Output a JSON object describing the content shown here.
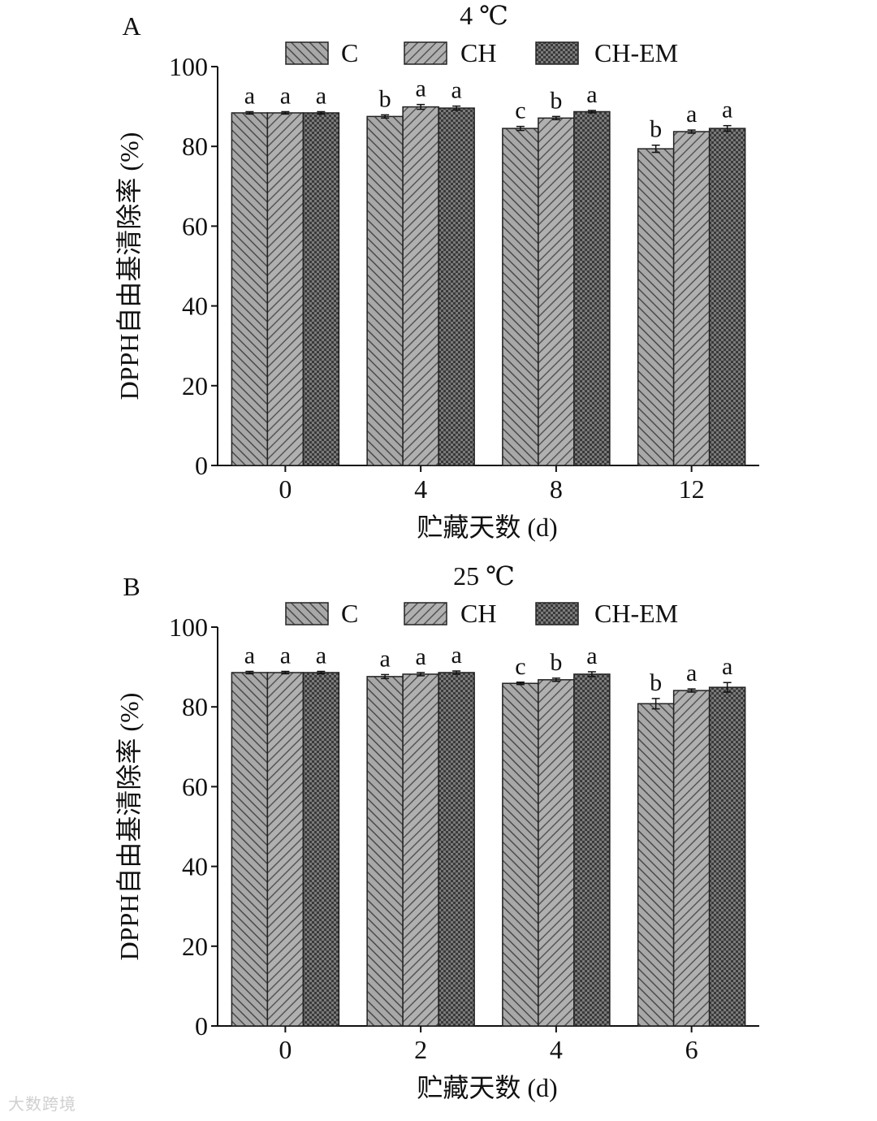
{
  "chart_data": [
    {
      "type": "bar",
      "panel_letter": "A",
      "title": "4 ℃",
      "xlabel": "贮藏天数 (d)",
      "ylabel": "DPPH自由基清除率 (%)",
      "ylim": [
        0,
        100
      ],
      "yticks": [
        "0",
        "20",
        "40",
        "60",
        "80",
        "100"
      ],
      "categories": [
        "0",
        "4",
        "8",
        "12"
      ],
      "legend": [
        "C",
        "CH",
        "CH-EM"
      ],
      "series": [
        {
          "name": "C",
          "values": [
            88.4,
            87.5,
            84.5,
            79.4
          ],
          "errors": [
            0.3,
            0.4,
            0.5,
            0.9
          ],
          "letters": [
            "a",
            "b",
            "c",
            "b"
          ]
        },
        {
          "name": "CH",
          "values": [
            88.4,
            89.9,
            87.1,
            83.7
          ],
          "errors": [
            0.3,
            0.6,
            0.4,
            0.4
          ],
          "letters": [
            "a",
            "a",
            "b",
            "a"
          ]
        },
        {
          "name": "CH-EM",
          "values": [
            88.4,
            89.6,
            88.7,
            84.5
          ],
          "errors": [
            0.3,
            0.5,
            0.3,
            0.7
          ],
          "letters": [
            "a",
            "a",
            "a",
            "a"
          ]
        }
      ]
    },
    {
      "type": "bar",
      "panel_letter": "B",
      "title": "25 ℃",
      "xlabel": "贮藏天数 (d)",
      "ylabel": "DPPH自由基清除率 (%)",
      "ylim": [
        0,
        100
      ],
      "yticks": [
        "0",
        "20",
        "40",
        "60",
        "80",
        "100"
      ],
      "categories": [
        "0",
        "2",
        "4",
        "6"
      ],
      "legend": [
        "C",
        "CH",
        "CH-EM"
      ],
      "series": [
        {
          "name": "C",
          "values": [
            88.6,
            87.6,
            85.9,
            80.8
          ],
          "errors": [
            0.3,
            0.5,
            0.3,
            1.3
          ],
          "letters": [
            "a",
            "a",
            "c",
            "b"
          ]
        },
        {
          "name": "CH",
          "values": [
            88.6,
            88.2,
            86.8,
            84.1
          ],
          "errors": [
            0.3,
            0.4,
            0.4,
            0.4
          ],
          "letters": [
            "a",
            "a",
            "b",
            "a"
          ]
        },
        {
          "name": "CH-EM",
          "values": [
            88.6,
            88.6,
            88.2,
            84.9
          ],
          "errors": [
            0.3,
            0.4,
            0.6,
            1.2
          ],
          "letters": [
            "a",
            "a",
            "a",
            "a"
          ]
        }
      ]
    }
  ],
  "watermark": "大数跨境"
}
